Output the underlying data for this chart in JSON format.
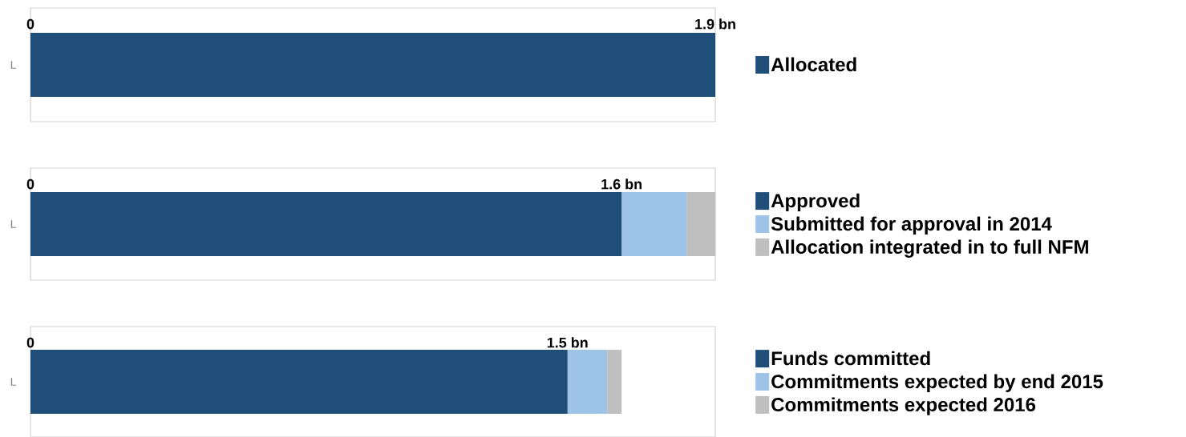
{
  "chart_data": [
    {
      "type": "bar",
      "orientation": "horizontal",
      "stacked": true,
      "categories": [
        "L"
      ],
      "xlim": [
        0,
        1.9
      ],
      "xticks": [
        0,
        {
          "value": 1.9,
          "label": "1.9 bn"
        }
      ],
      "legend": "right",
      "series": [
        {
          "name": "Allocated",
          "color": "#1f4e78",
          "values": [
            1.9
          ]
        }
      ]
    },
    {
      "type": "bar",
      "orientation": "horizontal",
      "stacked": true,
      "categories": [
        "L"
      ],
      "xlim": [
        0,
        1.9
      ],
      "xticks": [
        0,
        {
          "value": 1.64,
          "label": "1.6 bn"
        }
      ],
      "legend": "right",
      "series": [
        {
          "name": "Approved",
          "color": "#1f4e78",
          "values": [
            1.64
          ]
        },
        {
          "name": "Submitted for approval in 2014",
          "color": "#9dc3e6",
          "values": [
            0.18
          ]
        },
        {
          "name": "Allocation integrated in to full NFM",
          "color": "#bfbfbf",
          "values": [
            0.08
          ]
        }
      ]
    },
    {
      "type": "bar",
      "orientation": "horizontal",
      "stacked": true,
      "categories": [
        "L"
      ],
      "xlim": [
        0,
        1.9
      ],
      "xticks": [
        0,
        {
          "value": 1.49,
          "label": "1.5 bn"
        }
      ],
      "legend": "right",
      "series": [
        {
          "name": "Funds committed",
          "color": "#1f4e78",
          "values": [
            1.49
          ]
        },
        {
          "name": "Commitments expected by end 2015",
          "color": "#9dc3e6",
          "values": [
            0.11
          ]
        },
        {
          "name": "Commitments expected 2016",
          "color": "#bfbfbf",
          "values": [
            0.04
          ]
        }
      ]
    }
  ]
}
